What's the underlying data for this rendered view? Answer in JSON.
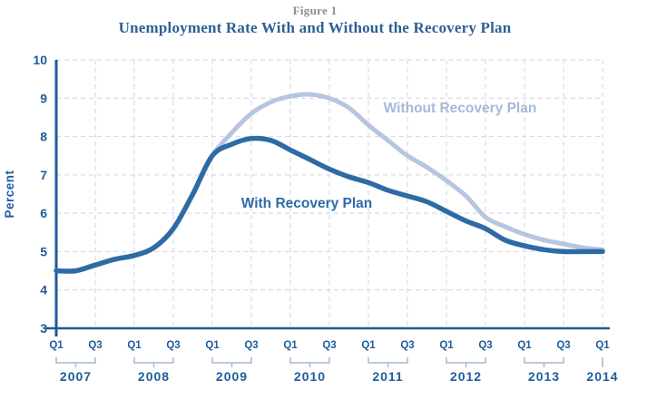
{
  "figure_label": "Figure 1",
  "title": "Unemployment Rate With and Without the Recovery Plan",
  "y_axis": {
    "label": "Percent",
    "tick_labels": [
      "10",
      "9",
      "8",
      "7",
      "6",
      "5",
      "4",
      "3"
    ],
    "min": 3,
    "max": 10
  },
  "x_axis": {
    "tick_labels": [
      "Q1",
      "Q3",
      "Q1",
      "Q3",
      "Q1",
      "Q3",
      "Q1",
      "Q3",
      "Q1",
      "Q3",
      "Q1",
      "Q3",
      "Q1",
      "Q3",
      "Q1"
    ],
    "years": [
      "2007",
      "2008",
      "2009",
      "2010",
      "2011",
      "2012",
      "2013",
      "2014"
    ]
  },
  "series_labels": {
    "without": "Without Recovery Plan",
    "with": "With Recovery Plan"
  },
  "colors": {
    "with_line": "#2e6ba5",
    "without_line": "#b6c5e0",
    "axis": "#1d5a96",
    "grid": "#d9dce6",
    "tick_text": "#1e5c9b",
    "bracket": "#a6b7ce",
    "without_label_text": "#a5b9d8",
    "with_label_text": "#2d6ba7",
    "title": "#2d6096",
    "figure_label": "#8e8e8e"
  },
  "chart_data": {
    "type": "line",
    "title": "Unemployment Rate With and Without the Recovery Plan",
    "xlabel": "",
    "ylabel": "Percent",
    "ylim": [
      3,
      10
    ],
    "grid": "dashed",
    "legend_position": "inline-labels",
    "x": [
      "2007 Q1",
      "2007 Q2",
      "2007 Q3",
      "2007 Q4",
      "2008 Q1",
      "2008 Q2",
      "2008 Q3",
      "2008 Q4",
      "2009 Q1",
      "2009 Q2",
      "2009 Q3",
      "2009 Q4",
      "2010 Q1",
      "2010 Q2",
      "2010 Q3",
      "2010 Q4",
      "2011 Q1",
      "2011 Q2",
      "2011 Q3",
      "2011 Q4",
      "2012 Q1",
      "2012 Q2",
      "2012 Q3",
      "2012 Q4",
      "2013 Q1",
      "2013 Q2",
      "2013 Q3",
      "2013 Q4",
      "2014 Q1"
    ],
    "series": [
      {
        "name": "Without Recovery Plan",
        "values": [
          4.5,
          4.5,
          4.65,
          4.8,
          4.9,
          5.1,
          5.6,
          6.5,
          7.5,
          8.1,
          8.6,
          8.9,
          9.05,
          9.1,
          9.0,
          8.75,
          8.3,
          7.9,
          7.5,
          7.2,
          6.85,
          6.45,
          5.9,
          5.65,
          5.45,
          5.3,
          5.2,
          5.1,
          5.05
        ]
      },
      {
        "name": "With Recovery Plan",
        "values": [
          4.5,
          4.5,
          4.65,
          4.8,
          4.9,
          5.1,
          5.6,
          6.5,
          7.5,
          7.8,
          7.95,
          7.9,
          7.65,
          7.4,
          7.15,
          6.95,
          6.8,
          6.6,
          6.45,
          6.3,
          6.05,
          5.8,
          5.6,
          5.3,
          5.15,
          5.05,
          5.0,
          5.0,
          5.0
        ]
      }
    ]
  }
}
